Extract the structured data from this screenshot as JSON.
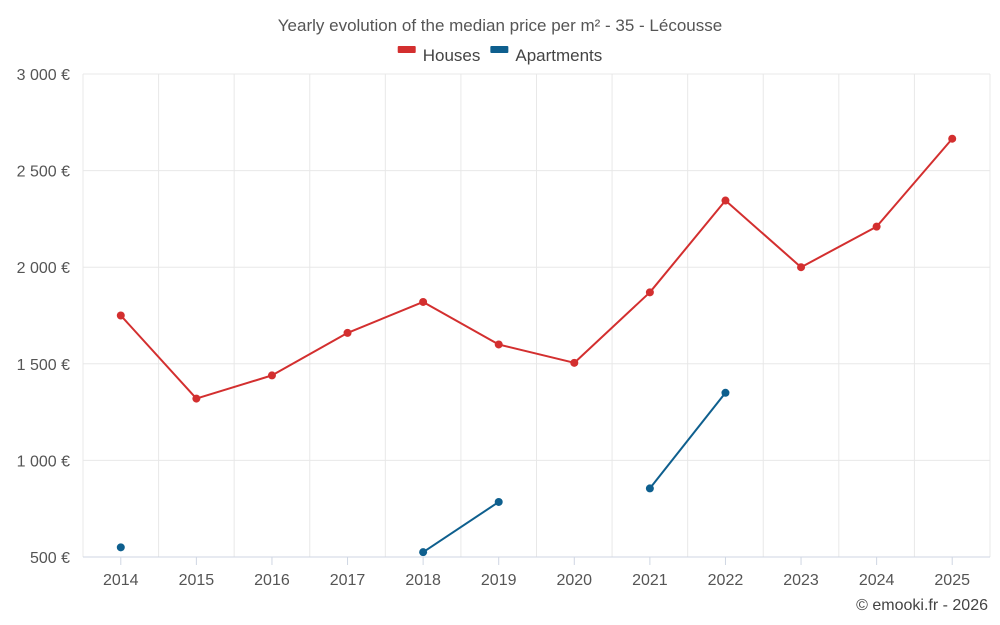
{
  "chart_data": {
    "type": "line",
    "title": "Yearly evolution of the median price per m² - 35 - Lécousse",
    "categories": [
      "2014",
      "2015",
      "2016",
      "2017",
      "2018",
      "2019",
      "2020",
      "2021",
      "2022",
      "2023",
      "2024",
      "2025"
    ],
    "series": [
      {
        "name": "Houses",
        "color": "#d32f2f",
        "values": [
          1750,
          1320,
          1440,
          1660,
          1820,
          1600,
          1505,
          1870,
          2345,
          2000,
          2210,
          2665
        ]
      },
      {
        "name": "Apartments",
        "color": "#0e5f8e",
        "values": [
          550,
          null,
          null,
          null,
          525,
          785,
          null,
          855,
          1350,
          null,
          null,
          null
        ]
      }
    ],
    "ylim": [
      500,
      3000
    ],
    "yticks": [
      500,
      1000,
      1500,
      2000,
      2500,
      3000
    ],
    "ytick_labels": [
      "500 €",
      "1 000 €",
      "1 500 €",
      "2 000 €",
      "2 500 €",
      "3 000 €"
    ],
    "grid": true,
    "legend_position": "top-center",
    "xlabel": "",
    "ylabel": ""
  },
  "credit": "© emooki.fr - 2026"
}
